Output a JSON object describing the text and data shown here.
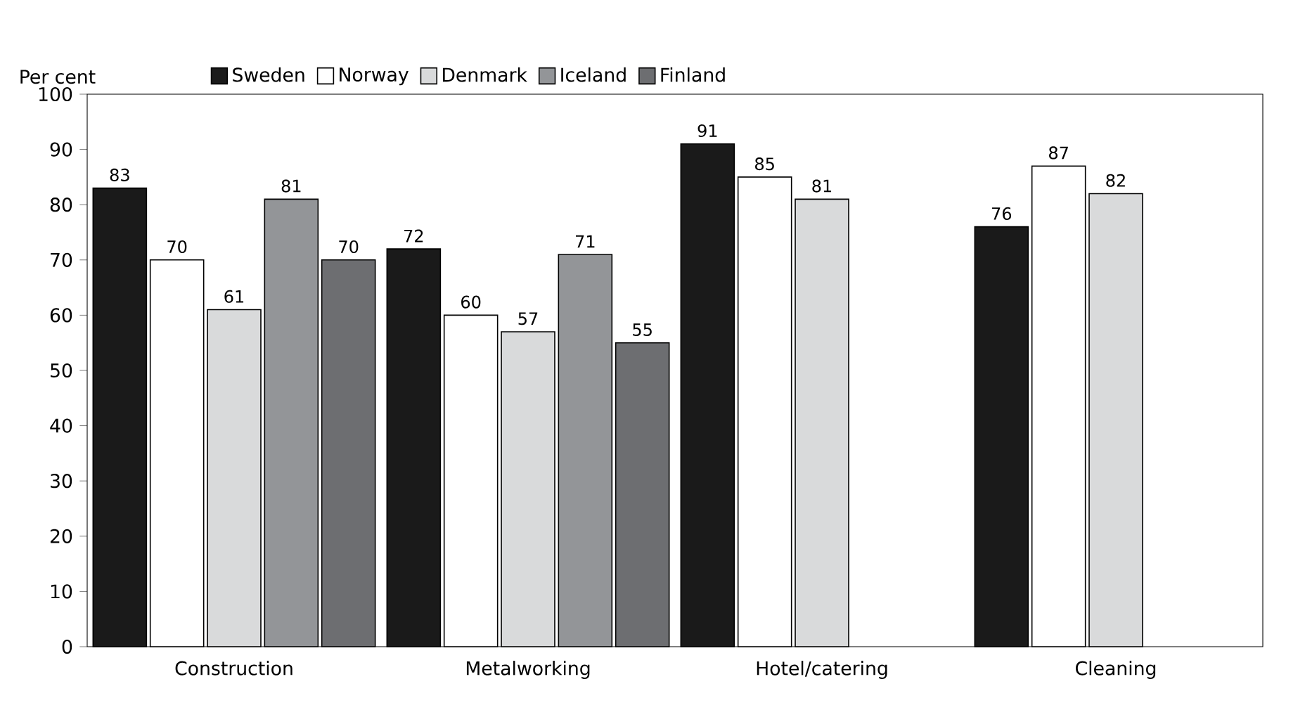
{
  "chart_data": {
    "type": "bar",
    "ylabel": "Per cent",
    "categories": [
      "Construction",
      "Metalworking",
      "Hotel/catering",
      "Cleaning"
    ],
    "series": [
      {
        "name": "Sweden",
        "color": "#1a1a1a",
        "values": [
          83,
          72,
          91,
          76
        ]
      },
      {
        "name": "Norway",
        "color": "#ffffff",
        "values": [
          70,
          60,
          85,
          87
        ]
      },
      {
        "name": "Denmark",
        "color": "#d9dadb",
        "values": [
          61,
          57,
          81,
          82
        ]
      },
      {
        "name": "Iceland",
        "color": "#939598",
        "values": [
          81,
          71,
          null,
          null
        ]
      },
      {
        "name": "Finland",
        "color": "#6d6e71",
        "values": [
          70,
          55,
          null,
          null
        ]
      }
    ],
    "ylim": [
      0,
      100
    ],
    "yticks": [
      0,
      10,
      20,
      30,
      40,
      50,
      60,
      70,
      80,
      90,
      100
    ],
    "data_labels": true,
    "legend": "top",
    "grid": false
  }
}
